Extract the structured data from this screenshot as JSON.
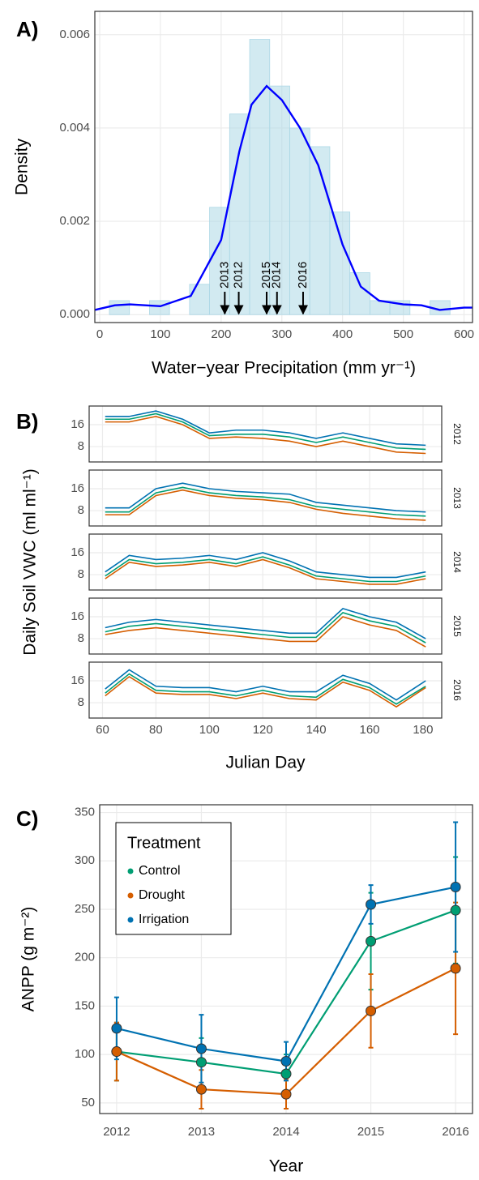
{
  "chart_data": [
    {
      "type": "histogram",
      "panel_label": "A)",
      "xlabel": "Water−year Precipitation (mm yr⁻¹)",
      "ylabel": "Density",
      "bins": [
        16,
        49,
        82,
        115,
        148,
        181,
        214,
        247,
        280,
        313,
        346,
        379,
        412,
        445,
        478,
        511,
        544,
        577
      ],
      "values": [
        0.0003,
        0,
        0.0003,
        0,
        0.00065,
        0.0023,
        0.0043,
        0.0059,
        0.0049,
        0.004,
        0.0036,
        0.0022,
        0.0009,
        0.0003,
        0.0003,
        0,
        0.0003
      ],
      "color": "#add8e6",
      "density": {
        "x": [
          -8,
          25,
          50,
          100,
          150,
          200,
          230,
          250,
          275,
          300,
          330,
          360,
          400,
          430,
          460,
          500,
          530,
          560,
          600,
          614
        ],
        "values": [
          0.0001,
          0.0002,
          0.00022,
          0.00018,
          0.0004,
          0.0016,
          0.0035,
          0.0045,
          0.0049,
          0.0046,
          0.004,
          0.0032,
          0.0015,
          0.0006,
          0.0003,
          0.00022,
          0.0002,
          0.0001,
          0.00015,
          0.00015
        ],
        "color": "#0000ff"
      },
      "annotations": [
        {
          "text": "2013",
          "x": 206
        },
        {
          "text": "2012",
          "x": 229
        },
        {
          "text": "2015",
          "x": 275
        },
        {
          "text": "2014",
          "x": 292
        },
        {
          "text": "2016",
          "x": 335
        }
      ],
      "xlim": [
        -8,
        614
      ],
      "xticks": [
        0,
        100,
        200,
        300,
        400,
        500,
        600
      ],
      "ylim": [
        -0.00017,
        0.0065
      ],
      "yticks": [
        {
          "value": 0,
          "label": "0.000"
        },
        {
          "value": 0.002,
          "label": "0.002"
        },
        {
          "value": 0.004,
          "label": "0.004"
        },
        {
          "value": 0.006,
          "label": "0.006"
        }
      ],
      "grid": true
    },
    {
      "type": "line",
      "panel_label": "B)",
      "xlabel": "Julian Day",
      "ylabel": "Daily Soil VWC (ml ml⁻¹)",
      "x": [
        61,
        70,
        80,
        90,
        100,
        110,
        120,
        130,
        140,
        150,
        160,
        170,
        181
      ],
      "xlim": [
        55,
        187
      ],
      "xticks": [
        60,
        80,
        100,
        120,
        140,
        160,
        180
      ],
      "ylim": [
        2.4,
        22.8
      ],
      "yticks": [
        8,
        16
      ],
      "grid": true,
      "facets": [
        {
          "label": "2012",
          "series": [
            {
              "color": "#0072b2",
              "values": [
                19,
                19,
                21,
                18,
                13,
                14,
                14,
                13,
                11,
                13,
                11,
                9,
                8.5
              ]
            },
            {
              "color": "#009e73",
              "values": [
                18,
                18,
                20,
                17,
                12,
                12.5,
                12.5,
                11.5,
                9.5,
                11.5,
                9.5,
                7.5,
                7
              ]
            },
            {
              "color": "#d55e00",
              "values": [
                17,
                17,
                19,
                16,
                11,
                11.5,
                11,
                10,
                8,
                10,
                8,
                6,
                5.5
              ]
            }
          ]
        },
        {
          "label": "2013",
          "series": [
            {
              "color": "#0072b2",
              "values": [
                9,
                9,
                16,
                18,
                16,
                15,
                14.5,
                14,
                11,
                10,
                9,
                8,
                7.5
              ]
            },
            {
              "color": "#009e73",
              "values": [
                7.5,
                7.5,
                14.5,
                16.5,
                14.5,
                13.5,
                13,
                12,
                9.5,
                8.5,
                7.5,
                6.5,
                6
              ]
            },
            {
              "color": "#d55e00",
              "values": [
                6.5,
                6.5,
                13.5,
                15.5,
                13.5,
                12.5,
                12,
                11,
                8.5,
                7,
                6,
                5,
                4.5
              ]
            }
          ]
        },
        {
          "label": "2014",
          "series": [
            {
              "color": "#0072b2",
              "values": [
                9,
                15,
                13.5,
                14,
                15,
                13.5,
                16,
                13,
                9,
                8,
                7,
                7,
                9
              ]
            },
            {
              "color": "#009e73",
              "values": [
                7.5,
                13.5,
                12,
                12.5,
                13.5,
                12,
                14.5,
                11.5,
                7.5,
                6.5,
                5.5,
                5.5,
                7.5
              ]
            },
            {
              "color": "#d55e00",
              "values": [
                6.5,
                12.5,
                11,
                11.5,
                12.5,
                11,
                13.5,
                10.5,
                6.5,
                5.5,
                4.5,
                4.5,
                6.5
              ]
            }
          ]
        },
        {
          "label": "2015",
          "series": [
            {
              "color": "#0072b2",
              "values": [
                12,
                14,
                15,
                14,
                13,
                12,
                11,
                10,
                10,
                19,
                16,
                14,
                8
              ]
            },
            {
              "color": "#009e73",
              "values": [
                10.5,
                12.5,
                13.5,
                12.5,
                11.5,
                10.5,
                9.5,
                8.5,
                8.5,
                17.5,
                14.5,
                12.5,
                6.5
              ]
            },
            {
              "color": "#d55e00",
              "values": [
                9.5,
                11,
                12,
                11,
                10,
                9,
                8,
                7,
                7,
                16,
                13,
                11,
                5
              ]
            }
          ]
        },
        {
          "label": "2016",
          "series": [
            {
              "color": "#0072b2",
              "values": [
                13,
                20,
                14,
                13.5,
                13.5,
                12,
                14,
                12,
                12,
                18,
                15,
                9,
                16
              ]
            },
            {
              "color": "#009e73",
              "values": [
                11.5,
                18.5,
                12.5,
                12,
                12,
                10.5,
                12.5,
                10.5,
                10,
                16.5,
                13.5,
                7.5,
                14
              ]
            },
            {
              "color": "#d55e00",
              "values": [
                10.5,
                17.5,
                11.5,
                11,
                11,
                9.5,
                11.5,
                9.5,
                9,
                15.5,
                12.5,
                6.5,
                13.5
              ]
            }
          ]
        }
      ]
    },
    {
      "type": "errorbar",
      "panel_label": "C)",
      "xlabel": "Year",
      "ylabel": "ANPP (g m⁻²)",
      "x": [
        2012,
        2013,
        2014,
        2015,
        2016
      ],
      "series": [
        {
          "name": "Control",
          "color": "#009e73",
          "values": [
            103,
            92,
            80,
            217,
            249
          ],
          "errors": [
            30,
            25,
            20,
            50,
            55
          ]
        },
        {
          "name": "Drought",
          "color": "#d55e00",
          "values": [
            103,
            64,
            59,
            145,
            189
          ],
          "errors": [
            30,
            20,
            15,
            38,
            68
          ]
        },
        {
          "name": "Irrigation",
          "color": "#0072b2",
          "values": [
            127,
            106,
            93,
            255,
            273
          ],
          "errors": [
            32,
            35,
            20,
            20,
            67
          ]
        }
      ],
      "legend_title": "Treatment",
      "legend": "top-left",
      "xlim": [
        2011.8,
        2016.2
      ],
      "xticks": [
        2012,
        2013,
        2014,
        2015,
        2016
      ],
      "ylim": [
        39,
        358
      ],
      "yticks": [
        50,
        100,
        150,
        200,
        250,
        300,
        350
      ],
      "grid": true
    }
  ]
}
